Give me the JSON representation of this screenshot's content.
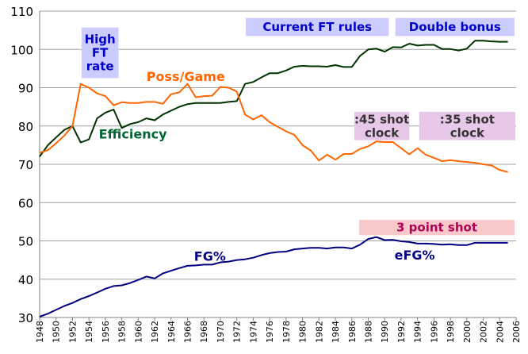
{
  "chart_data": {
    "type": "line",
    "title": "",
    "xlabel": "",
    "ylabel": "",
    "xlim": [
      1948,
      2006
    ],
    "ylim": [
      30,
      110
    ],
    "grid": true,
    "x_ticks": [
      "1948",
      "1950",
      "1952",
      "1954",
      "1956",
      "1958",
      "1960",
      "1962",
      "1964",
      "1966",
      "1968",
      "1970",
      "1972",
      "1974",
      "1976",
      "1978",
      "1980",
      "1982",
      "1984",
      "1986",
      "1988",
      "1990",
      "1992",
      "1994",
      "1996",
      "1998",
      "2000",
      "2002",
      "2004",
      "2006"
    ],
    "y_ticks": [
      "30",
      "40",
      "50",
      "60",
      "70",
      "80",
      "90",
      "100",
      "110"
    ],
    "series": [
      {
        "name": "Efficiency",
        "color": "#003300",
        "label_color": "#006633",
        "x": [
          1948,
          1949,
          1950,
          1951,
          1952,
          1953,
          1954,
          1955,
          1956,
          1957,
          1958,
          1959,
          1960,
          1961,
          1962,
          1963,
          1964,
          1965,
          1966,
          1967,
          1968,
          1969,
          1970,
          1971,
          1972,
          1973,
          1974,
          1975,
          1976,
          1977,
          1978,
          1979,
          1980,
          1981,
          1982,
          1983,
          1984,
          1985,
          1986,
          1987,
          1988,
          1989,
          1990,
          1991,
          1992,
          1993,
          1994,
          1995,
          1996,
          1997,
          1998,
          1999,
          2000,
          2001,
          2002,
          2003,
          2004,
          2005
        ],
        "values": [
          72,
          75,
          77,
          79,
          80,
          75.7,
          76.5,
          82,
          83.5,
          84.3,
          79.5,
          80.5,
          81,
          82,
          81.5,
          83,
          84,
          85,
          85.7,
          86,
          86,
          86,
          86,
          86.3,
          86.5,
          91,
          91.5,
          92.7,
          93.8,
          93.8,
          94.5,
          95.5,
          95.7,
          95.6,
          95.6,
          95.5,
          95.9,
          95.4,
          95.4,
          98.3,
          100,
          100.2,
          99.4,
          100.6,
          100.5,
          101.5,
          101,
          101.2,
          101.2,
          100.1,
          100.1,
          99.7,
          100.2,
          102.3,
          102.3,
          102.1,
          102,
          102
        ]
      },
      {
        "name": "Poss/Game",
        "color": "#ff6600",
        "label_color": "#ff6600",
        "x": [
          1948,
          1949,
          1950,
          1951,
          1952,
          1953,
          1954,
          1955,
          1956,
          1957,
          1958,
          1959,
          1960,
          1961,
          1962,
          1963,
          1964,
          1965,
          1966,
          1967,
          1968,
          1969,
          1970,
          1971,
          1972,
          1973,
          1974,
          1975,
          1976,
          1977,
          1978,
          1979,
          1980,
          1981,
          1982,
          1983,
          1984,
          1985,
          1986,
          1987,
          1988,
          1989,
          1990,
          1991,
          1992,
          1993,
          1994,
          1995,
          1996,
          1997,
          1998,
          1999,
          2000,
          2001,
          2002,
          2003,
          2004,
          2005
        ],
        "values": [
          73,
          73.7,
          75.5,
          77.5,
          80,
          91,
          90,
          88.5,
          87.8,
          85.4,
          86.2,
          86,
          86,
          86.3,
          86.3,
          85.8,
          88.3,
          88.8,
          91,
          87.5,
          87.8,
          87.9,
          90.2,
          90,
          89,
          83,
          81.7,
          82.8,
          81,
          79.8,
          78.6,
          77.7,
          75,
          73.6,
          71,
          72.5,
          71.2,
          72.7,
          72.7,
          74,
          74.7,
          76,
          75.8,
          75.8,
          74.2,
          72.6,
          74.2,
          72.5,
          71.7,
          70.8,
          71.1,
          70.8,
          70.6,
          70.4,
          70,
          69.7,
          68.5,
          68
        ]
      },
      {
        "name": "FG%",
        "color": "#000080",
        "label_color": "#000080",
        "x": [
          1948,
          1949,
          1950,
          1951,
          1952,
          1953,
          1954,
          1955,
          1956,
          1957,
          1958,
          1959,
          1960,
          1961,
          1962,
          1963,
          1964,
          1965,
          1966,
          1967,
          1968,
          1969,
          1970,
          1971,
          1972,
          1973,
          1974,
          1975,
          1976,
          1977,
          1978,
          1979,
          1980,
          1981,
          1982,
          1983,
          1984,
          1985,
          1986,
          1987,
          1988,
          1989,
          1990,
          1991,
          1992,
          1993,
          1994,
          1995,
          1996,
          1997,
          1998,
          1999,
          2000,
          2001,
          2002,
          2003,
          2004,
          2005
        ],
        "values": [
          30.2,
          31,
          32,
          33,
          33.8,
          34.8,
          35.6,
          36.5,
          37.5,
          38.2,
          38.4,
          39,
          39.8,
          40.7,
          40.2,
          41.5,
          42.2,
          42.9,
          43.5,
          43.6,
          43.8,
          43.8,
          44.4,
          44.6,
          45,
          45.2,
          45.6,
          46.3,
          46.8,
          47.1,
          47.2,
          47.8,
          48,
          48.2,
          48.2,
          48,
          48.3,
          48.3,
          48,
          49,
          50.5,
          51,
          50.2,
          50.3,
          49.9,
          49.7,
          49.3,
          49.3,
          49.2,
          49,
          49.1,
          48.9,
          48.9,
          49.5,
          49.5,
          49.5,
          49.5,
          49.5
        ]
      }
    ],
    "labels": [
      {
        "text": "Poss/Game",
        "series": "Poss/Game"
      },
      {
        "text": "Efficiency",
        "series": "Efficiency"
      },
      {
        "text": "FG%",
        "series": "FG%"
      },
      {
        "text": "eFG%",
        "series": "FG%"
      }
    ],
    "annotations": [
      {
        "lines": [
          "High",
          "FT",
          "rate"
        ],
        "x0": 1953.1,
        "x1": 1957.6,
        "y0": 92.5,
        "y1": 105.7,
        "bg": "#ccccff",
        "color": "#0000cc"
      },
      {
        "lines": [
          "Current FT rules"
        ],
        "x0": 1973.1,
        "x1": 1990.5,
        "y0": 103.5,
        "y1": 108.2,
        "bg": "#ccccff",
        "color": "#0000cc"
      },
      {
        "lines": [
          "Double bonus"
        ],
        "x0": 1991.3,
        "x1": 2005.8,
        "y0": 103.5,
        "y1": 108.2,
        "bg": "#ccccff",
        "color": "#0000cc"
      },
      {
        "lines": [
          ":45 shot",
          "clock"
        ],
        "x0": 1986.3,
        "x1": 1993,
        "y0": 76.3,
        "y1": 83.7,
        "bg": "#e8c8e8",
        "color": "#333333"
      },
      {
        "lines": [
          ":35 shot",
          "clock"
        ],
        "x0": 1994.2,
        "x1": 2005.9,
        "y0": 76.3,
        "y1": 83.7,
        "bg": "#e8c8e8",
        "color": "#333333"
      },
      {
        "lines": [
          "3 point shot"
        ],
        "x0": 1986.9,
        "x1": 2005.8,
        "y0": 51.5,
        "y1": 55.5,
        "bg": "#f9c8c8",
        "color": "#b0005a"
      }
    ]
  }
}
